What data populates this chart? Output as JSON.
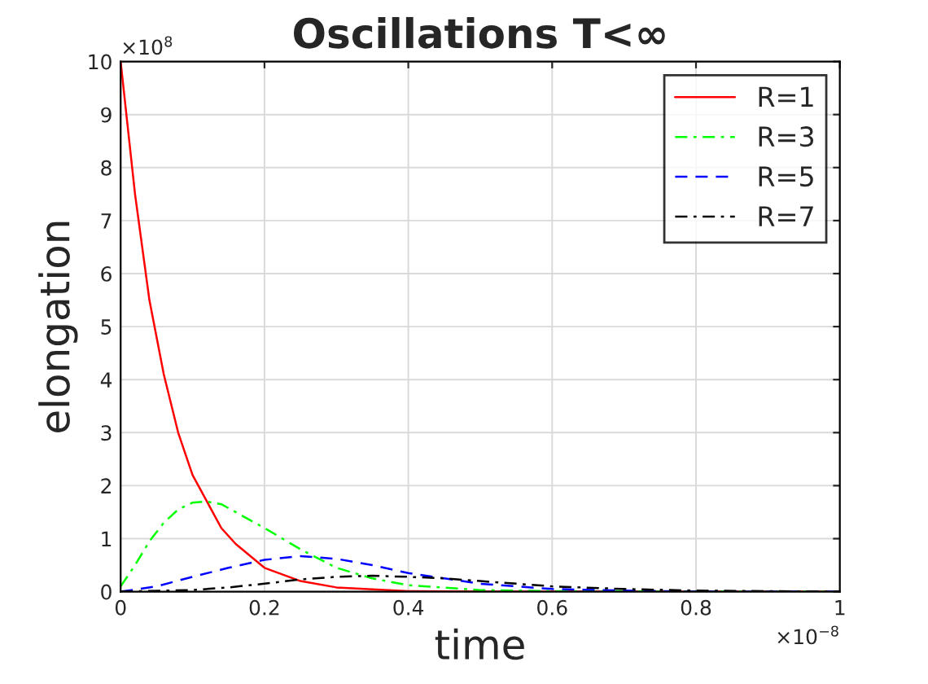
{
  "chart_data": {
    "type": "line",
    "title": "Oscillations T<∞",
    "xlabel": "time",
    "ylabel": "elongation",
    "annotations": [
      "×10$^{8}$",
      "×10$^{−8}$"
    ],
    "xlim": [
      0,
      1
    ],
    "ylim": [
      0,
      10
    ],
    "xticks": [
      0,
      0.2,
      0.4,
      0.6,
      0.8,
      1
    ],
    "yticks": [
      0,
      1,
      2,
      3,
      4,
      5,
      6,
      7,
      8,
      9,
      10
    ],
    "grid": true,
    "legend": "top right",
    "series": [
      {
        "name": "R=1",
        "color": "#ff0000",
        "line_style": "solid",
        "x": [
          0,
          0.02,
          0.04,
          0.06,
          0.08,
          0.1,
          0.12,
          0.14,
          0.16,
          0.2,
          0.25,
          0.3,
          0.4,
          0.5,
          1
        ],
        "values": [
          10,
          7.5,
          5.5,
          4.1,
          3.0,
          2.2,
          1.7,
          1.2,
          0.9,
          0.45,
          0.2,
          0.08,
          0.01,
          0,
          0
        ]
      },
      {
        "name": "R=3",
        "color": "#00ff00",
        "line_style": "dashdot",
        "x": [
          0,
          0.02,
          0.04,
          0.06,
          0.08,
          0.1,
          0.12,
          0.14,
          0.16,
          0.2,
          0.25,
          0.3,
          0.35,
          0.4,
          0.5,
          0.6,
          1
        ],
        "values": [
          0.1,
          0.5,
          0.95,
          1.3,
          1.55,
          1.68,
          1.7,
          1.65,
          1.5,
          1.2,
          0.8,
          0.45,
          0.25,
          0.12,
          0.03,
          0.01,
          0
        ]
      },
      {
        "name": "R=5",
        "color": "#0000ff",
        "line_style": "dashed",
        "x": [
          0,
          0.05,
          0.1,
          0.15,
          0.2,
          0.25,
          0.3,
          0.35,
          0.4,
          0.45,
          0.5,
          0.6,
          0.7,
          0.8,
          1
        ],
        "values": [
          0,
          0.1,
          0.28,
          0.45,
          0.6,
          0.67,
          0.62,
          0.5,
          0.35,
          0.25,
          0.15,
          0.05,
          0.02,
          0,
          0
        ]
      },
      {
        "name": "R=7",
        "color": "#000000",
        "line_style": "dashdot",
        "x": [
          0,
          0.1,
          0.15,
          0.2,
          0.25,
          0.3,
          0.35,
          0.4,
          0.45,
          0.5,
          0.6,
          0.7,
          0.8,
          1
        ],
        "values": [
          0,
          0.03,
          0.08,
          0.15,
          0.23,
          0.28,
          0.3,
          0.28,
          0.25,
          0.2,
          0.1,
          0.05,
          0.02,
          0
        ]
      }
    ]
  }
}
